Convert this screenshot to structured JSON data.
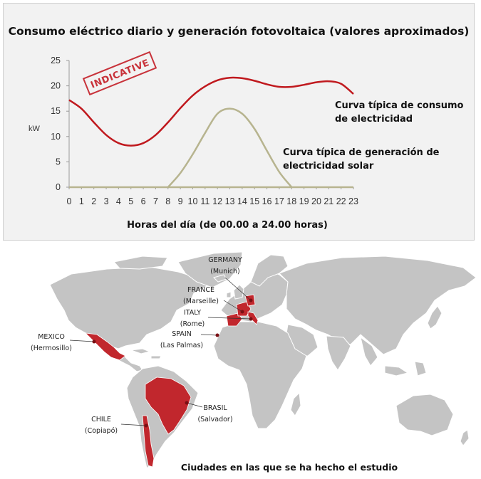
{
  "chart_data": {
    "type": "line",
    "title": "Consumo eléctrico diario y generación fotovoltaica (valores aproximados)",
    "xlabel": "Horas del día (de 00.00 a 24.00 horas)",
    "ylabel": "kW",
    "xlim": [
      0,
      23
    ],
    "ylim": [
      0,
      25
    ],
    "x": [
      0,
      1,
      2,
      3,
      4,
      5,
      6,
      7,
      8,
      9,
      10,
      11,
      12,
      13,
      14,
      15,
      16,
      17,
      18,
      19,
      20,
      21,
      22,
      23
    ],
    "y_ticks": [
      0,
      5,
      10,
      15,
      20,
      25
    ],
    "grid": false,
    "stamp": "INDICATIVE",
    "series": [
      {
        "name": "Curva típica de consumo de electricidad",
        "color": "#c0191e",
        "values": [
          17.2,
          15.5,
          12.8,
          10.3,
          8.7,
          8.2,
          8.7,
          10.3,
          12.8,
          15.6,
          18.1,
          19.9,
          21.1,
          21.6,
          21.5,
          21.0,
          20.3,
          19.8,
          19.8,
          20.2,
          20.7,
          20.9,
          20.4,
          18.4
        ]
      },
      {
        "name": "Curva típica de generación de electricidad solar",
        "color": "#b7b48f",
        "values": [
          0,
          0,
          0,
          0,
          0,
          0,
          0,
          0,
          0,
          2.8,
          6.5,
          10.7,
          14.5,
          15.5,
          14.5,
          11.5,
          7.2,
          3.0,
          0,
          0,
          0,
          0,
          0,
          0
        ]
      }
    ]
  },
  "map": {
    "caption": "Ciudades en las que se ha hecho el estudio",
    "land_color": "#c4c4c4",
    "highlight_color": "#c1272d",
    "cities": [
      {
        "country": "GERMANY",
        "city": "(Munich)"
      },
      {
        "country": "FRANCE",
        "city": "(Marseille)"
      },
      {
        "country": "ITALY",
        "city": "(Rome)"
      },
      {
        "country": "SPAIN",
        "city": "(Las Palmas)"
      },
      {
        "country": "MEXICO",
        "city": "(Hermosillo)"
      },
      {
        "country": "BRASIL",
        "city": "(Salvador)"
      },
      {
        "country": "CHILE",
        "city": "(Copiapó)"
      }
    ]
  }
}
